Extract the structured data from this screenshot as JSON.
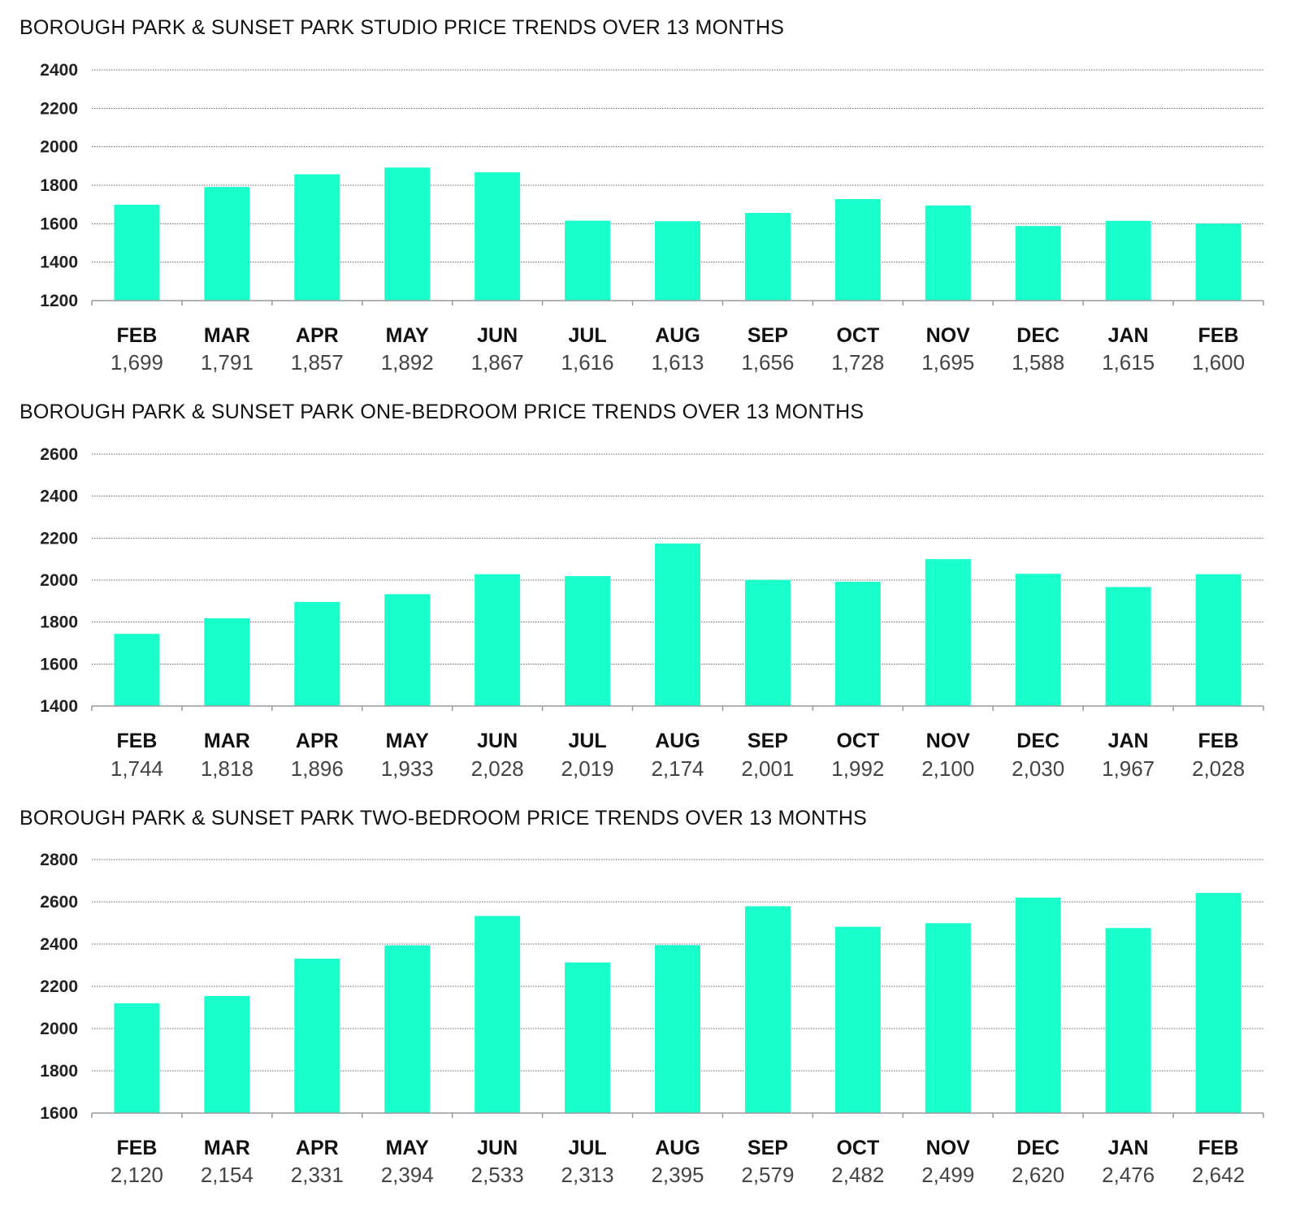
{
  "colors": {
    "bar": "#19FFCC",
    "grid": "#666666",
    "axis": "#999999"
  },
  "chart_data": [
    {
      "type": "bar",
      "title": "BOROUGH PARK & SUNSET PARK STUDIO PRICE TRENDS OVER 13 MONTHS",
      "categories": [
        "FEB",
        "MAR",
        "APR",
        "MAY",
        "JUN",
        "JUL",
        "AUG",
        "SEP",
        "OCT",
        "NOV",
        "DEC",
        "JAN",
        "FEB"
      ],
      "values": [
        1699,
        1791,
        1857,
        1892,
        1867,
        1616,
        1613,
        1656,
        1728,
        1695,
        1588,
        1615,
        1600
      ],
      "value_labels": [
        "1,699",
        "1,791",
        "1,857",
        "1,892",
        "1,867",
        "1,616",
        "1,613",
        "1,656",
        "1,728",
        "1,695",
        "1,588",
        "1,615",
        "1,600"
      ],
      "yticks": [
        1200,
        1400,
        1600,
        1800,
        2000,
        2200,
        2400
      ],
      "ylim": [
        1200,
        2400
      ],
      "grid": true
    },
    {
      "type": "bar",
      "title": "BOROUGH PARK & SUNSET PARK ONE-BEDROOM PRICE TRENDS OVER 13 MONTHS",
      "categories": [
        "FEB",
        "MAR",
        "APR",
        "MAY",
        "JUN",
        "JUL",
        "AUG",
        "SEP",
        "OCT",
        "NOV",
        "DEC",
        "JAN",
        "FEB"
      ],
      "values": [
        1744,
        1818,
        1896,
        1933,
        2028,
        2019,
        2174,
        2001,
        1992,
        2100,
        2030,
        1967,
        2028
      ],
      "value_labels": [
        "1,744",
        "1,818",
        "1,896",
        "1,933",
        "2,028",
        "2,019",
        "2,174",
        "2,001",
        "1,992",
        "2,100",
        "2,030",
        "1,967",
        "2,028"
      ],
      "yticks": [
        1400,
        1600,
        1800,
        2000,
        2200,
        2400,
        2600
      ],
      "ylim": [
        1400,
        2600
      ],
      "grid": true
    },
    {
      "type": "bar",
      "title": "BOROUGH PARK & SUNSET PARK  TWO-BEDROOM PRICE TRENDS OVER 13 MONTHS",
      "categories": [
        "FEB",
        "MAR",
        "APR",
        "MAY",
        "JUN",
        "JUL",
        "AUG",
        "SEP",
        "OCT",
        "NOV",
        "DEC",
        "JAN",
        "FEB"
      ],
      "values": [
        2120,
        2154,
        2331,
        2394,
        2533,
        2313,
        2395,
        2579,
        2482,
        2499,
        2620,
        2476,
        2642
      ],
      "value_labels": [
        "2,120",
        "2,154",
        "2,331",
        "2,394",
        "2,533",
        "2,313",
        "2,395",
        "2,579",
        "2,482",
        "2,499",
        "2,620",
        "2,476",
        "2,642"
      ],
      "yticks": [
        1600,
        1800,
        2000,
        2200,
        2400,
        2600,
        2800
      ],
      "ylim": [
        1600,
        2800
      ],
      "grid": true
    }
  ]
}
